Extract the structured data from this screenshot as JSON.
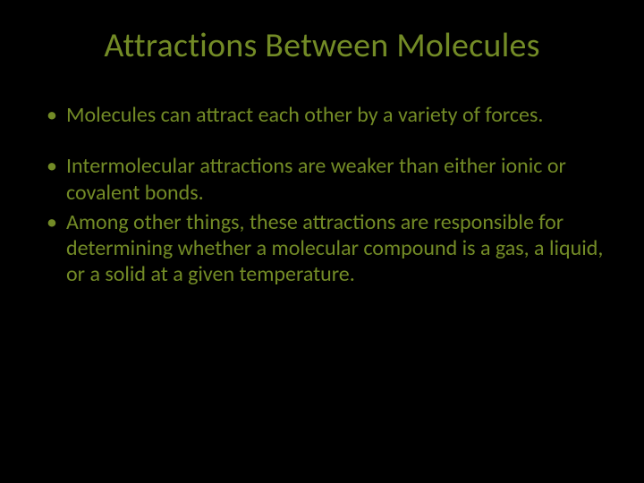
{
  "slide": {
    "background_color": "#000000",
    "text_color": "#738b26",
    "title": {
      "text": "Attractions Between Molecules",
      "fontsize": 38,
      "font_weight": 400
    },
    "bullets": {
      "fontsize": 24,
      "items": [
        {
          "text": "Molecules can attract each other by a variety of forces.",
          "gap_before": false
        },
        {
          "text": "Intermolecular attractions are weaker than either ionic or covalent bonds.",
          "gap_before": true
        },
        {
          "text": "Among other things, these attractions are responsible for determining whether a molecular compound is a gas, a liquid, or a solid at a given temperature.",
          "gap_before": false
        }
      ]
    }
  }
}
